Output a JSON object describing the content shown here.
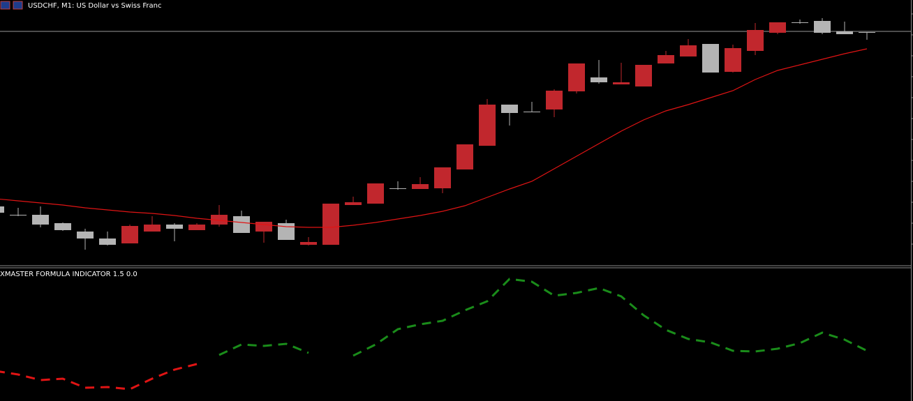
{
  "chart_data": [
    {
      "type": "candlestick",
      "title": "USDCHF, M1:  US Dollar vs Swiss Franc",
      "open": [
        84,
        72,
        72,
        60,
        48,
        38,
        31,
        48,
        58,
        50,
        58,
        70,
        48,
        60,
        29,
        29,
        86,
        88,
        110,
        109,
        110,
        137,
        171,
        230,
        220,
        223,
        249,
        269,
        259,
        256,
        289,
        299,
        317,
        277,
        307,
        333,
        348,
        350,
        335,
        334
      ],
      "high": [
        90,
        82,
        84,
        61,
        52,
        48,
        58,
        70,
        60,
        60,
        86,
        78,
        62,
        65,
        40,
        88,
        98,
        117,
        120,
        126,
        140,
        173,
        238,
        230,
        234,
        252,
        289,
        294,
        290,
        287,
        307,
        324,
        317,
        316,
        347,
        348,
        352,
        354,
        349,
        334
      ],
      "low": [
        72,
        70,
        54,
        49,
        22,
        28,
        31,
        48,
        34,
        50,
        55,
        46,
        32,
        36,
        28,
        29,
        86,
        88,
        108,
        109,
        103,
        137,
        171,
        200,
        219,
        212,
        246,
        260,
        259,
        256,
        289,
        299,
        276,
        276,
        301,
        331,
        346,
        331,
        331,
        323
      ],
      "close": [
        75,
        71,
        58,
        50,
        38,
        29,
        56,
        58,
        52,
        58,
        72,
        46,
        62,
        36,
        33,
        88,
        90,
        117,
        109,
        116,
        140,
        173,
        230,
        218,
        219,
        250,
        289,
        262,
        262,
        287,
        301,
        315,
        276,
        311,
        337,
        348,
        347,
        333,
        331,
        333
      ],
      "up_color": "#c1272d",
      "down_color": "#b4b4b4",
      "ma": {
        "color": "#e01414",
        "values": [
          95,
          92,
          89,
          86,
          82,
          79,
          76,
          74,
          71,
          67,
          64,
          61,
          58,
          55,
          54,
          54,
          57,
          61,
          66,
          71,
          77,
          85,
          97,
          109,
          120,
          138,
          156,
          174,
          192,
          208,
          221,
          230,
          240,
          250,
          266,
          279,
          287,
          295,
          303,
          310
        ]
      },
      "price_line": 335,
      "price_line_color": "#9a9a9a",
      "ylim": [
        0,
        380
      ]
    },
    {
      "type": "line",
      "title": "XMASTER FORMULA INDICATOR 1.5 0.0",
      "dashed": true,
      "series": [
        {
          "color": "#e01414",
          "values": [
            43,
            38,
            30,
            32,
            19,
            20,
            17,
            32,
            45,
            53,
            null,
            null,
            null,
            null,
            null,
            null,
            null,
            null,
            null,
            null,
            null,
            null,
            null,
            null,
            null,
            null,
            null,
            null,
            null,
            null,
            null,
            null,
            null,
            null,
            null,
            null,
            null,
            null,
            null,
            null
          ]
        },
        {
          "color": "#1a8c1a",
          "values": [
            null,
            null,
            null,
            null,
            null,
            null,
            null,
            null,
            null,
            null,
            66,
            81,
            79,
            82,
            69,
            null,
            65,
            81,
            103,
            110,
            115,
            130,
            143,
            175,
            171,
            151,
            155,
            162,
            150,
            123,
            102,
            89,
            84,
            72,
            71,
            75,
            83,
            98,
            88,
            72
          ]
        }
      ],
      "ylim": [
        0,
        192
      ]
    }
  ]
}
